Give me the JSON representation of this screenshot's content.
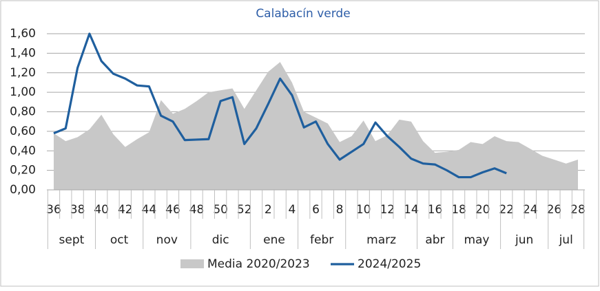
{
  "chart_data": {
    "type": "line",
    "title": "Calabacín verde",
    "categories": [
      "36",
      null,
      "38",
      null,
      "40",
      null,
      "42",
      null,
      "44",
      null,
      "46",
      null,
      "48",
      null,
      "50",
      null,
      "52",
      null,
      "2",
      null,
      "4",
      null,
      "6",
      null,
      "8",
      null,
      "10",
      null,
      "12",
      null,
      "14",
      null,
      "16",
      null,
      "18",
      null,
      "20",
      null,
      "22",
      null,
      "24",
      null,
      "26",
      null,
      "28"
    ],
    "months": [
      "sept",
      "oct",
      "nov",
      "dic",
      "ene",
      "febr",
      "marz",
      "abr",
      "may",
      "jun",
      "jul"
    ],
    "series": [
      {
        "name": "Media 2020/2023",
        "kind": "area",
        "color": "#c8c8c8",
        "values": [
          0.58,
          0.5,
          0.54,
          0.62,
          0.77,
          0.57,
          0.44,
          0.52,
          0.59,
          0.92,
          0.78,
          0.83,
          0.91,
          1.0,
          1.02,
          1.04,
          0.83,
          1.02,
          1.21,
          1.31,
          1.1,
          0.8,
          0.74,
          0.68,
          0.49,
          0.55,
          0.71,
          0.5,
          0.56,
          0.72,
          0.7,
          0.5,
          0.38,
          0.39,
          0.41,
          0.49,
          0.47,
          0.55,
          0.5,
          0.49,
          0.42,
          0.35,
          0.31,
          0.27,
          0.31
        ]
      },
      {
        "name": "2024/2025",
        "kind": "line",
        "color": "#1f5f9e",
        "values": [
          0.58,
          0.63,
          1.25,
          1.6,
          1.32,
          1.19,
          1.14,
          1.07,
          1.06,
          0.76,
          0.7,
          0.51,
          0.515,
          0.52,
          0.91,
          0.95,
          0.47,
          0.63,
          0.88,
          1.14,
          0.97,
          0.64,
          0.7,
          0.47,
          0.31,
          0.39,
          0.47,
          0.69,
          0.55,
          0.44,
          0.32,
          0.27,
          0.26,
          0.2,
          0.13,
          0.13,
          0.18,
          0.22,
          0.17,
          null,
          null,
          null,
          null,
          null,
          null
        ]
      }
    ],
    "ylim": [
      0,
      1.6
    ],
    "yticks": [
      {
        "value": 0,
        "label": "0,00"
      },
      {
        "value": 0.2,
        "label": "0,20"
      },
      {
        "value": 0.4,
        "label": "0,40"
      },
      {
        "value": 0.6,
        "label": "0,60"
      },
      {
        "value": 0.8,
        "label": "0,80"
      },
      {
        "value": 1.0,
        "label": "1,00"
      },
      {
        "value": 1.2,
        "label": "1,20"
      },
      {
        "value": 1.4,
        "label": "1,40"
      },
      {
        "value": 1.6,
        "label": "1,60"
      }
    ],
    "grid": true
  }
}
